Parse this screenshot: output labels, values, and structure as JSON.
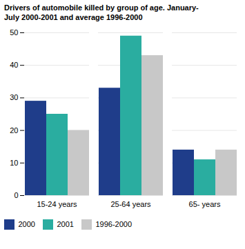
{
  "chart_data": {
    "type": "bar",
    "title": "Drivers of automobile killed by group of age. January-\nJuly 2000-2001 and average 1996-2000",
    "categories": [
      "15-24 years",
      "25-64 years",
      "65- years"
    ],
    "series": [
      {
        "name": "2000",
        "color": "#1f3d8a",
        "values": [
          29,
          33,
          14
        ]
      },
      {
        "name": "2001",
        "color": "#2aada0",
        "values": [
          25,
          49,
          11
        ]
      },
      {
        "name": "1996-2000",
        "color": "#c8c8c8",
        "values": [
          20,
          43,
          14
        ]
      }
    ],
    "ylim": [
      0,
      50
    ],
    "yticks": [
      0,
      10,
      20,
      30,
      40,
      50
    ],
    "grid": true,
    "legend": "bottom"
  }
}
